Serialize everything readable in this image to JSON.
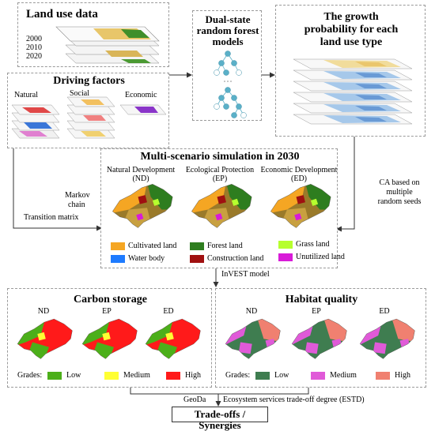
{
  "land_use": {
    "title": "Land use data",
    "years": [
      "2000",
      "2010",
      "2020"
    ]
  },
  "driving": {
    "title": "Driving factors",
    "natural": "Natural",
    "social": "Social",
    "economic": "Economic"
  },
  "rf": {
    "title_line1": "Dual-state",
    "title_line2": "random forest",
    "title_line3": "models"
  },
  "growth": {
    "title_line1": "The growth",
    "title_line2": "probability for each",
    "title_line3": "land use type"
  },
  "sim": {
    "title": "Multi-scenario simulation in 2030",
    "scenarios": [
      {
        "line1": "Natural Development",
        "line2": "(ND)"
      },
      {
        "line1": "Ecological Protection",
        "line2": "(EP)"
      },
      {
        "line1": "Economic Development",
        "line2": "(ED)"
      }
    ],
    "legend": [
      {
        "label": "Cultivated land",
        "color": "#f5a623"
      },
      {
        "label": "Forest land",
        "color": "#2e7d1f"
      },
      {
        "label": "Grass land",
        "color": "#b6ff2e"
      },
      {
        "label": "Water body",
        "color": "#1e7bff"
      },
      {
        "label": "Construction land",
        "color": "#a01010"
      },
      {
        "label": "Unutilized land",
        "color": "#d81bd8"
      }
    ]
  },
  "flow": {
    "markov_line1": "Markov",
    "markov_line2": "chain",
    "transition": "Transition matrix",
    "ca_line1": "CA based on",
    "ca_line2": "multiple",
    "ca_line3": "random seeds",
    "invest": "InVEST model",
    "geoda": "GeoDa",
    "estd": "Ecosystem services trade-off degree (ESTD)"
  },
  "carbon": {
    "title": "Carbon storage",
    "maps": [
      "ND",
      "EP",
      "ED"
    ],
    "grades_label": "Grades:",
    "grades": [
      {
        "label": "Low",
        "color": "#4caf1a"
      },
      {
        "label": "Medium",
        "color": "#ffff33"
      },
      {
        "label": "High",
        "color": "#ff1a1a"
      }
    ]
  },
  "habitat": {
    "title": "Habitat quality",
    "maps": [
      "ND",
      "EP",
      "ED"
    ],
    "grades_label": "Grades:",
    "grades": [
      {
        "label": "Low",
        "color": "#3f7d50"
      },
      {
        "label": "Medium",
        "color": "#e05ad8"
      },
      {
        "label": "High",
        "color": "#f08070"
      }
    ]
  },
  "result": {
    "title": "Trade-offs / Synergies"
  }
}
